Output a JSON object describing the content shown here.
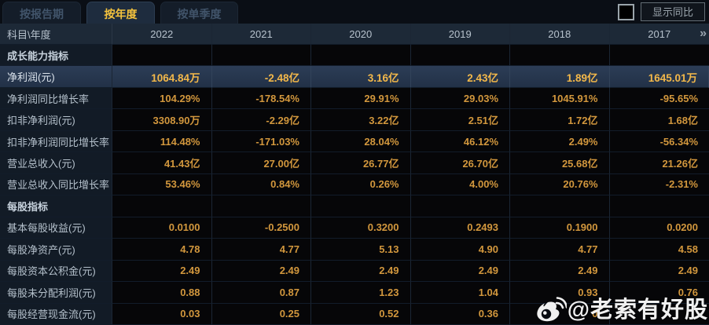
{
  "tabs": [
    {
      "label": "按报告期",
      "active": false
    },
    {
      "label": "按年度",
      "active": true
    },
    {
      "label": "按单季度",
      "active": false
    }
  ],
  "controls": {
    "show_yoy_label": "显示同比",
    "checkbox_checked": false
  },
  "table": {
    "corner_header": "科目\\年度",
    "years": [
      "2022",
      "2021",
      "2020",
      "2019",
      "2018",
      "2017"
    ],
    "more_label": "»",
    "rows": [
      {
        "type": "section",
        "label": "成长能力指标",
        "values": [
          "",
          "",
          "",
          "",
          "",
          ""
        ]
      },
      {
        "type": "highlight",
        "label": "净利润(元)",
        "values": [
          "1064.84万",
          "-2.48亿",
          "3.16亿",
          "2.43亿",
          "1.89亿",
          "1645.01万"
        ]
      },
      {
        "type": "data",
        "label": "净利润同比增长率",
        "values": [
          "104.29%",
          "-178.54%",
          "29.91%",
          "29.03%",
          "1045.91%",
          "-95.65%"
        ]
      },
      {
        "type": "data",
        "label": "扣非净利润(元)",
        "values": [
          "3308.90万",
          "-2.29亿",
          "3.22亿",
          "2.51亿",
          "1.72亿",
          "1.68亿"
        ]
      },
      {
        "type": "data",
        "label": "扣非净利润同比增长率",
        "values": [
          "114.48%",
          "-171.03%",
          "28.04%",
          "46.12%",
          "2.49%",
          "-56.34%"
        ]
      },
      {
        "type": "data",
        "label": "营业总收入(元)",
        "values": [
          "41.43亿",
          "27.00亿",
          "26.77亿",
          "26.70亿",
          "25.68亿",
          "21.26亿"
        ]
      },
      {
        "type": "data",
        "label": "营业总收入同比增长率",
        "values": [
          "53.46%",
          "0.84%",
          "0.26%",
          "4.00%",
          "20.76%",
          "-2.31%"
        ]
      },
      {
        "type": "section",
        "label": "每股指标",
        "values": [
          "",
          "",
          "",
          "",
          "",
          ""
        ]
      },
      {
        "type": "data",
        "label": "基本每股收益(元)",
        "values": [
          "0.0100",
          "-0.2500",
          "0.3200",
          "0.2493",
          "0.1900",
          "0.0200"
        ]
      },
      {
        "type": "data",
        "label": "每股净资产(元)",
        "values": [
          "4.78",
          "4.77",
          "5.13",
          "4.90",
          "4.77",
          "4.58"
        ]
      },
      {
        "type": "data",
        "label": "每股资本公积金(元)",
        "values": [
          "2.49",
          "2.49",
          "2.49",
          "2.49",
          "2.49",
          "2.49"
        ]
      },
      {
        "type": "data",
        "label": "每股未分配利润(元)",
        "values": [
          "0.88",
          "0.87",
          "1.23",
          "1.04",
          "0.93",
          "0.76"
        ]
      },
      {
        "type": "data",
        "label": "每股经营现金流(元)",
        "values": [
          "0.03",
          "0.25",
          "0.52",
          "0.36",
          "0",
          ""
        ]
      }
    ]
  },
  "watermark": {
    "icon": "weibo-logo-icon",
    "text": "@老索有好股"
  },
  "colors": {
    "accent_gold": "#d2973d",
    "highlight_gold": "#f3b84a",
    "active_tab_text": "#f4c23d",
    "header_bg": "#1d2937",
    "label_bg": "#121b26",
    "highlight_row_bg": "#263750",
    "cell_bg": "#060608"
  }
}
